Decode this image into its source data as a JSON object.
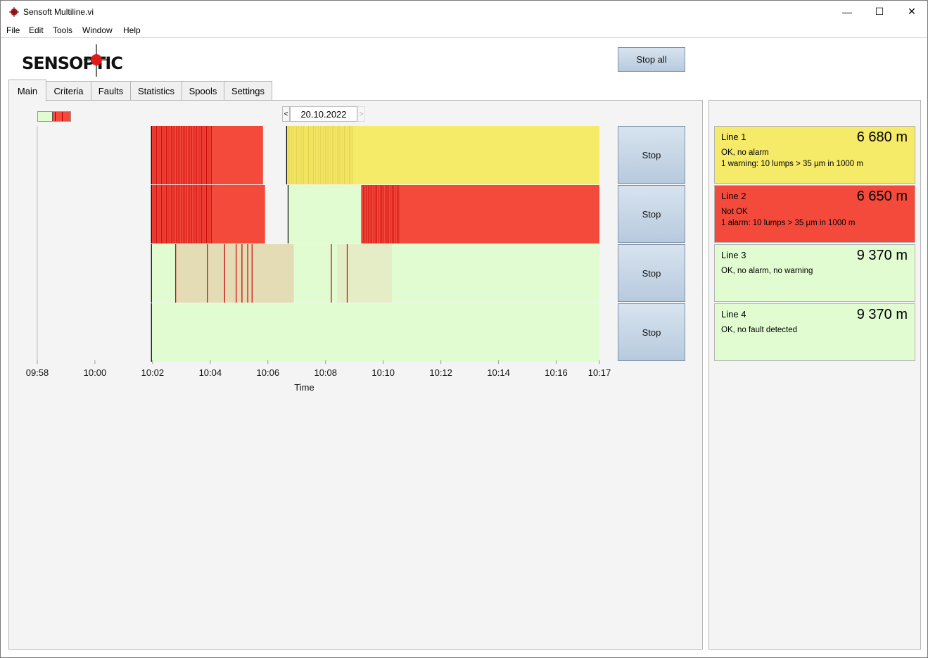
{
  "window": {
    "title": "Sensoft Multiline.vi",
    "min_glyph": "—",
    "max_glyph": "☐",
    "close_glyph": "✕"
  },
  "menu": [
    "File",
    "Edit",
    "Tools",
    "Window",
    "Help"
  ],
  "logo": {
    "text": "SENSOPTIC"
  },
  "header": {
    "stop_all_label": "Stop all"
  },
  "tabs": [
    {
      "label": "Main",
      "active": true
    },
    {
      "label": "Criteria"
    },
    {
      "label": "Faults"
    },
    {
      "label": "Statistics"
    },
    {
      "label": "Spools"
    },
    {
      "label": "Settings"
    }
  ],
  "date_picker": {
    "value": "20.10.2022",
    "prev": "<",
    "next": ">"
  },
  "colors": {
    "ok": "#e0fcd0",
    "warning": "#f6ea69",
    "alarm": "#f44a3c",
    "mark": "#c40000",
    "empty": "#f4f4f4"
  },
  "timeline": {
    "xlabel": "Time",
    "tick_labels": [
      "09:58",
      "10:00",
      "10:02",
      "10:04",
      "10:06",
      "10:08",
      "10:10",
      "10:12",
      "10:14",
      "10:16",
      "10:17"
    ],
    "tick_minutes": [
      0,
      2,
      4,
      6,
      8,
      10,
      12,
      14,
      16,
      18,
      19.5
    ],
    "lines": [
      {
        "name": "Line 1",
        "segments": [
          {
            "start": 3.96,
            "end": 7.83,
            "state": "alarm"
          },
          {
            "start": 8.65,
            "end": 19.5,
            "state": "warning"
          }
        ],
        "hatch": [
          {
            "start": 3.96,
            "end": 6.1,
            "state": "alarm"
          },
          {
            "start": 8.7,
            "end": 11.0,
            "state": "warning"
          }
        ],
        "starts": [
          3.96,
          8.65
        ]
      },
      {
        "name": "Line 2",
        "segments": [
          {
            "start": 3.96,
            "end": 7.9,
            "state": "alarm"
          },
          {
            "start": 8.7,
            "end": 11.25,
            "state": "ok"
          },
          {
            "start": 11.25,
            "end": 19.5,
            "state": "alarm"
          }
        ],
        "hatch": [
          {
            "start": 3.96,
            "end": 6.1,
            "state": "alarm"
          },
          {
            "start": 11.25,
            "end": 12.6,
            "state": "alarm"
          }
        ],
        "starts": [
          3.96,
          8.7
        ]
      },
      {
        "name": "Line 3",
        "segments": [
          {
            "start": 3.96,
            "end": 19.5,
            "state": "ok"
          }
        ],
        "shade": [
          {
            "start": 4.8,
            "end": 8.9,
            "color": "#e3dcb4"
          },
          {
            "start": 10.4,
            "end": 12.3,
            "color": "#e5edc6"
          }
        ],
        "marks": [
          4.8,
          5.9,
          6.5,
          6.9,
          7.1,
          7.3,
          7.45,
          10.2,
          10.75
        ],
        "starts": [
          3.96
        ]
      },
      {
        "name": "Line 4",
        "segments": [
          {
            "start": 3.96,
            "end": 19.5,
            "state": "ok"
          }
        ],
        "starts": [
          3.96
        ]
      }
    ]
  },
  "line_stop_label": "Stop",
  "cards": [
    {
      "name": "Line 1",
      "length": "6 680 m",
      "status": "OK, no alarm",
      "detail": "1 warning: 10 lumps > 35 µm in 1000 m",
      "color": "#f6ea69"
    },
    {
      "name": "Line 2",
      "length": "6 650 m",
      "status": "Not OK",
      "detail": "1 alarm: 10 lumps > 35 µm in 1000 m",
      "color": "#f44a3c"
    },
    {
      "name": "Line 3",
      "length": "9 370 m",
      "status": "OK, no alarm, no warning",
      "detail": "",
      "color": "#e0fcd0"
    },
    {
      "name": "Line 4",
      "length": "9 370 m",
      "status": "OK, no fault detected",
      "detail": "",
      "color": "#e0fcd0"
    }
  ]
}
